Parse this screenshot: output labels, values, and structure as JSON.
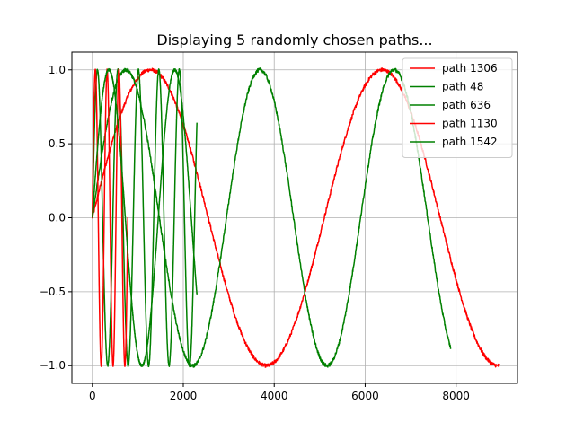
{
  "chart_data": {
    "type": "line",
    "title": "Displaying 5 randomly chosen paths...",
    "xlabel": "",
    "ylabel": "",
    "xlim": [
      -450,
      9350
    ],
    "ylim": [
      -1.12,
      1.12
    ],
    "xticks": [
      0,
      2000,
      4000,
      6000,
      8000
    ],
    "xtick_labels": [
      "0",
      "2000",
      "4000",
      "6000",
      "8000"
    ],
    "yticks": [
      -1.0,
      -0.5,
      0.0,
      0.5,
      1.0
    ],
    "ytick_labels": [
      "−1.0",
      "−0.5",
      "0.0",
      "0.5",
      "1.0"
    ],
    "grid": true,
    "legend_position": "top-right",
    "series": [
      {
        "name": "path 1306",
        "color": "#ff0000",
        "x_start": 0,
        "x_end": 8950,
        "period": 5100,
        "phase": 0,
        "noise": 0.012
      },
      {
        "name": "path 48",
        "color": "#008000",
        "x_start": 0,
        "x_end": 2300,
        "period": 450,
        "phase": 0,
        "noise": 0.008
      },
      {
        "name": "path 636",
        "color": "#008000",
        "x_start": 0,
        "x_end": 7880,
        "period": 2950,
        "phase": 0,
        "noise": 0.012
      },
      {
        "name": "path 1130",
        "color": "#ff0000",
        "x_start": 0,
        "x_end": 780,
        "period": 260,
        "phase": 0,
        "noise": 0.006
      },
      {
        "name": "path 1542",
        "color": "#008000",
        "x_start": 0,
        "x_end": 2300,
        "period": 1450,
        "phase": 0,
        "noise": 0.008
      }
    ]
  }
}
